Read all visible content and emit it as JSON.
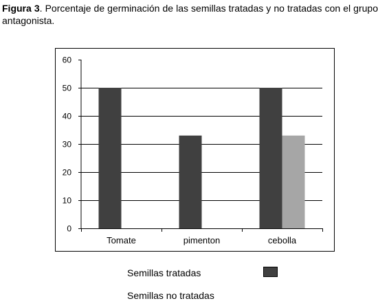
{
  "caption": {
    "label": "Figura 3",
    "text": ". Porcentaje de germinación de las semillas tratadas y no tratadas con el grupo antagonista."
  },
  "legend": [
    {
      "label": "Semillas tratadas",
      "color": "#404040",
      "swatch": true
    },
    {
      "label": "Semillas no tratadas",
      "color": "#a6a6a6",
      "swatch": false
    }
  ],
  "chart_data": {
    "type": "bar",
    "categories": [
      "Tomate",
      "pimenton",
      "cebolla"
    ],
    "series": [
      {
        "name": "Semillas tratadas",
        "values": [
          50,
          33,
          50
        ],
        "color": "#404040"
      },
      {
        "name": "Semillas no tratadas",
        "values": [
          null,
          null,
          33
        ],
        "color": "#a6a6a6"
      }
    ],
    "ylim": [
      0,
      60
    ],
    "yticks": [
      0,
      10,
      20,
      30,
      40,
      50,
      60
    ],
    "grid": true,
    "legend_position": "bottom"
  }
}
